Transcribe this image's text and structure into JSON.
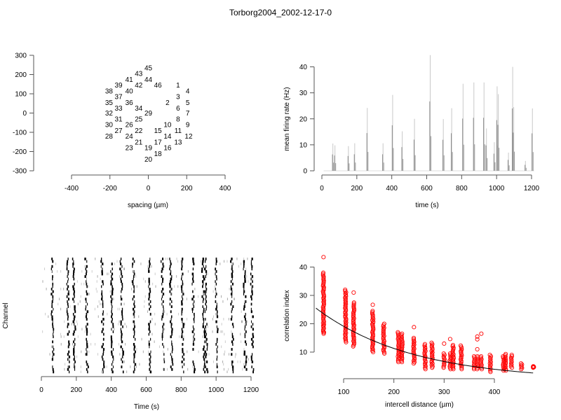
{
  "title": "Torborg2004_2002-12-17-0",
  "chart_data": [
    {
      "type": "scatter",
      "name": "electrode-layout",
      "title": "",
      "xlabel": "spacing (µm)",
      "ylabel": "",
      "xlim": [
        -400,
        400
      ],
      "ylim": [
        -300,
        300
      ],
      "xticks": [
        "-400",
        "-200",
        "0",
        "200",
        "400"
      ],
      "yticks": [
        "300",
        "200",
        "100",
        "0",
        "-100",
        "-200",
        "-300"
      ],
      "xtick_values": [
        -400,
        -200,
        0,
        200,
        400
      ],
      "ytick_values": [
        300,
        200,
        100,
        0,
        -100,
        -200,
        -300
      ],
      "points": [
        {
          "label": "1",
          "x": 155,
          "y": 145
        },
        {
          "label": "2",
          "x": 100,
          "y": 55
        },
        {
          "label": "3",
          "x": 155,
          "y": 85
        },
        {
          "label": "4",
          "x": 205,
          "y": 115
        },
        {
          "label": "5",
          "x": 205,
          "y": 55
        },
        {
          "label": "6",
          "x": 155,
          "y": 25
        },
        {
          "label": "7",
          "x": 205,
          "y": 0
        },
        {
          "label": "8",
          "x": 155,
          "y": -30
        },
        {
          "label": "9",
          "x": 205,
          "y": -60
        },
        {
          "label": "10",
          "x": 100,
          "y": -60
        },
        {
          "label": "11",
          "x": 155,
          "y": -90
        },
        {
          "label": "12",
          "x": 210,
          "y": -120
        },
        {
          "label": "13",
          "x": 155,
          "y": -150
        },
        {
          "label": "14",
          "x": 100,
          "y": -120
        },
        {
          "label": "15",
          "x": 50,
          "y": -90
        },
        {
          "label": "16",
          "x": 100,
          "y": -180
        },
        {
          "label": "17",
          "x": 50,
          "y": -150
        },
        {
          "label": "18",
          "x": 50,
          "y": -210
        },
        {
          "label": "19",
          "x": 0,
          "y": -180
        },
        {
          "label": "20",
          "x": 0,
          "y": -240
        },
        {
          "label": "21",
          "x": -50,
          "y": -150
        },
        {
          "label": "22",
          "x": -50,
          "y": -90
        },
        {
          "label": "23",
          "x": -100,
          "y": -180
        },
        {
          "label": "24",
          "x": -100,
          "y": -120
        },
        {
          "label": "25",
          "x": -50,
          "y": -30
        },
        {
          "label": "26",
          "x": -100,
          "y": -60
        },
        {
          "label": "27",
          "x": -155,
          "y": -90
        },
        {
          "label": "28",
          "x": -205,
          "y": -120
        },
        {
          "label": "29",
          "x": 0,
          "y": 0
        },
        {
          "label": "30",
          "x": -205,
          "y": -60
        },
        {
          "label": "31",
          "x": -155,
          "y": -30
        },
        {
          "label": "32",
          "x": -205,
          "y": 0
        },
        {
          "label": "33",
          "x": -155,
          "y": 25
        },
        {
          "label": "34",
          "x": -50,
          "y": 25
        },
        {
          "label": "35",
          "x": -205,
          "y": 55
        },
        {
          "label": "36",
          "x": -100,
          "y": 55
        },
        {
          "label": "37",
          "x": -155,
          "y": 85
        },
        {
          "label": "38",
          "x": -205,
          "y": 115
        },
        {
          "label": "39",
          "x": -155,
          "y": 145
        },
        {
          "label": "40",
          "x": -100,
          "y": 115
        },
        {
          "label": "41",
          "x": -100,
          "y": 175
        },
        {
          "label": "42",
          "x": -50,
          "y": 145
        },
        {
          "label": "43",
          "x": -50,
          "y": 205
        },
        {
          "label": "44",
          "x": 0,
          "y": 175
        },
        {
          "label": "45",
          "x": 0,
          "y": 235
        },
        {
          "label": "46",
          "x": 50,
          "y": 145
        }
      ]
    },
    {
      "type": "bar",
      "name": "mean-firing-rate",
      "title": "",
      "xlabel": "time (s)",
      "ylabel": "mean firing rate (Hz)",
      "xlim": [
        0,
        1200
      ],
      "ylim": [
        0,
        40
      ],
      "xticks": [
        "0",
        "200",
        "400",
        "600",
        "800",
        "1000",
        "1200"
      ],
      "yticks": [
        "0",
        "10",
        "20",
        "30",
        "40"
      ],
      "xtick_values": [
        0,
        200,
        400,
        600,
        800,
        1000,
        1200
      ],
      "ytick_values": [
        0,
        10,
        20,
        30,
        40
      ],
      "bursts": [
        {
          "t": 63,
          "peak": 10.5
        },
        {
          "t": 75,
          "peak": 9.8
        },
        {
          "t": 152,
          "peak": 9.5
        },
        {
          "t": 188,
          "peak": 10.6
        },
        {
          "t": 260,
          "peak": 24.2
        },
        {
          "t": 350,
          "peak": 10.6
        },
        {
          "t": 405,
          "peak": 29.2
        },
        {
          "t": 460,
          "peak": 15.2
        },
        {
          "t": 530,
          "peak": 20.0
        },
        {
          "t": 620,
          "peak": 44.5
        },
        {
          "t": 695,
          "peak": 19.9
        },
        {
          "t": 743,
          "peak": 24.1
        },
        {
          "t": 808,
          "peak": 33.5
        },
        {
          "t": 870,
          "peak": 34.0
        },
        {
          "t": 928,
          "peak": 34.0
        },
        {
          "t": 942,
          "peak": 16.3
        },
        {
          "t": 987,
          "peak": 11.0
        },
        {
          "t": 1003,
          "peak": 32.5
        },
        {
          "t": 1010,
          "peak": 29.5
        },
        {
          "t": 1068,
          "peak": 7.0
        },
        {
          "t": 1092,
          "peak": 40.0
        },
        {
          "t": 1098,
          "peak": 24.5
        },
        {
          "t": 1165,
          "peak": 3.8
        },
        {
          "t": 1205,
          "peak": 24.0
        }
      ]
    },
    {
      "type": "scatter",
      "name": "raster",
      "title": "",
      "xlabel": "Time (s)",
      "ylabel": "Channel",
      "xlim": [
        0,
        1200
      ],
      "xticks": [
        "0",
        "200",
        "400",
        "600",
        "800",
        "1000",
        "1200"
      ],
      "xtick_values": [
        0,
        200,
        400,
        600,
        800,
        1000,
        1200
      ],
      "burst_times": [
        63,
        152,
        188,
        260,
        350,
        405,
        460,
        530,
        620,
        695,
        743,
        808,
        870,
        928,
        942,
        1003,
        1092,
        1165,
        1205
      ],
      "channels": 46
    },
    {
      "type": "scatter",
      "name": "correlation-vs-distance",
      "title": "",
      "xlabel": "intercell distance (µm)",
      "ylabel": "correlation index",
      "xlim": [
        40,
        480
      ],
      "ylim": [
        0,
        40
      ],
      "xticks": [
        "100",
        "200",
        "300",
        "400"
      ],
      "yticks": [
        "10",
        "20",
        "30",
        "40"
      ],
      "xtick_values": [
        100,
        200,
        300,
        400
      ],
      "ytick_values": [
        10,
        20,
        30,
        40
      ],
      "columns": [
        {
          "x": 60,
          "min": 16.5,
          "max": 38,
          "outliers": [
            43.5,
            19.3,
            17
          ]
        },
        {
          "x": 104,
          "min": 13.5,
          "max": 32
        },
        {
          "x": 120,
          "min": 12,
          "max": 27.5,
          "outliers": [
            31
          ]
        },
        {
          "x": 158,
          "min": 10,
          "max": 24.5,
          "outliers": [
            26.7
          ]
        },
        {
          "x": 180,
          "min": 9.5,
          "max": 20
        },
        {
          "x": 209,
          "min": 6.5,
          "max": 17
        },
        {
          "x": 216,
          "min": 6.5,
          "max": 16.5
        },
        {
          "x": 240,
          "min": 6,
          "max": 15,
          "outliers": [
            18.8
          ]
        },
        {
          "x": 262,
          "min": 4,
          "max": 12.8
        },
        {
          "x": 276,
          "min": 4.5,
          "max": 13.3
        },
        {
          "x": 300,
          "min": 4.5,
          "max": 9.5,
          "outliers": [
            13
          ]
        },
        {
          "x": 312,
          "min": 4,
          "max": 9.5,
          "outliers": [
            14.6
          ]
        },
        {
          "x": 318,
          "min": 4,
          "max": 12.5
        },
        {
          "x": 334,
          "min": 4,
          "max": 12.3
        },
        {
          "x": 360,
          "min": 4,
          "max": 8.5
        },
        {
          "x": 366,
          "min": 4,
          "max": 8.5,
          "outliers": [
            11,
            14.5,
            15.5
          ]
        },
        {
          "x": 374,
          "min": 4,
          "max": 8.5,
          "outliers": [
            16.5
          ]
        },
        {
          "x": 392,
          "min": 3,
          "max": 9
        },
        {
          "x": 418,
          "min": 3.5,
          "max": 8.5
        },
        {
          "x": 422,
          "min": 3.5,
          "max": 9.3
        },
        {
          "x": 434,
          "min": 4.5,
          "max": 9
        },
        {
          "x": 454,
          "min": 4,
          "max": 6
        },
        {
          "x": 478,
          "min": 4.5,
          "max": 5
        }
      ],
      "fit": {
        "type": "exponential",
        "a": 32.3,
        "b": 0.00525,
        "color": "#000000"
      },
      "marker_color": "#ff0000"
    }
  ]
}
